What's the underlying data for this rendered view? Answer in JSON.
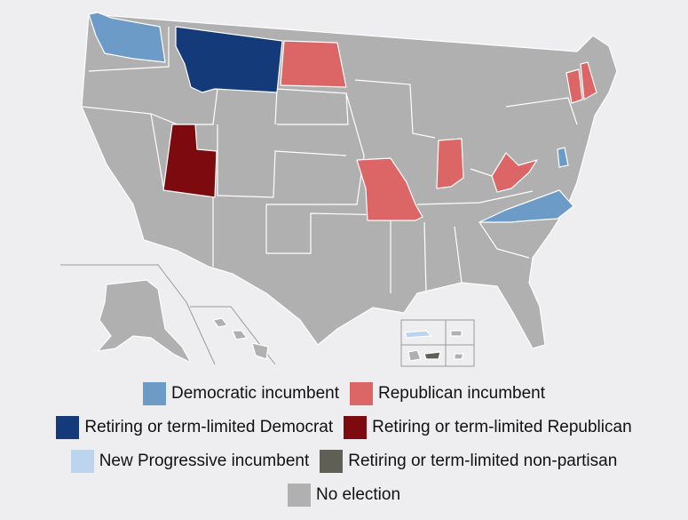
{
  "colors": {
    "democratic_incumbent": "#6b9bc6",
    "republican_incumbent": "#dc6565",
    "retiring_democrat": "#153a7a",
    "retiring_republican": "#7c0a0f",
    "new_progressive": "#bcd4ee",
    "retiring_nonpartisan": "#5f5f55",
    "no_election": "#b0b0b0"
  },
  "states": {
    "washington": "democratic_incumbent",
    "montana": "retiring_democrat",
    "north_dakota": "republican_incumbent",
    "utah": "retiring_republican",
    "missouri": "republican_incumbent",
    "indiana": "republican_incumbent",
    "west_virginia": "republican_incumbent",
    "north_carolina": "democratic_incumbent",
    "vermont": "republican_incumbent",
    "new_hampshire": "republican_incumbent",
    "delaware": "democratic_incumbent",
    "puerto_rico": "new_progressive",
    "american_samoa": "retiring_nonpartisan"
  },
  "legend": [
    [
      {
        "key": "democratic_incumbent",
        "label": "Democratic incumbent"
      },
      {
        "key": "republican_incumbent",
        "label": "Republican incumbent"
      }
    ],
    [
      {
        "key": "retiring_democrat",
        "label": "Retiring or term-limited Democrat"
      },
      {
        "key": "retiring_republican",
        "label": "Retiring or term-limited Republican"
      }
    ],
    [
      {
        "key": "new_progressive",
        "label": "New Progressive incumbent"
      },
      {
        "key": "retiring_nonpartisan",
        "label": "Retiring or term-limited non-partisan"
      }
    ],
    [
      {
        "key": "no_election",
        "label": "No election"
      }
    ]
  ]
}
